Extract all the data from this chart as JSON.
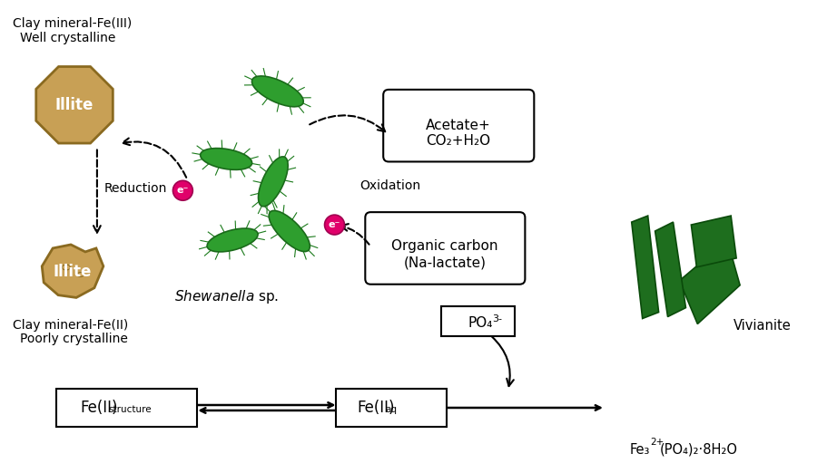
{
  "bg_color": "#ffffff",
  "illite_color": "#c8a055",
  "illite_edge": "#8a6a20",
  "bacteria_color": "#2e9e2e",
  "bacteria_edge": "#1a6a1a",
  "vivianite_color": "#1e6e1e",
  "vivianite_edge": "#0a4a0a",
  "electron_color": "#e0006a",
  "electron_edge": "#a00050",
  "box_color": "#ffffff",
  "box_edge": "#000000",
  "text_top_left_1": "Clay mineral-Fe(III)",
  "text_top_left_2": "Well crystalline",
  "text_illite_top": "Illite",
  "text_bottom_left_1": "Clay mineral-Fe(II)",
  "text_bottom_left_2": "Poorly crystalline",
  "text_illite_bottom": "Illite",
  "text_reduction": "Reduction",
  "text_oxidation": "Oxidation",
  "text_shewanella_italic": "Shewanella",
  "text_shewanella_normal": " sp.",
  "text_acetate_1": "Acetate+",
  "text_acetate_2": "CO₂+H₂O",
  "text_organic_1": "Organic carbon",
  "text_organic_2": "(Na-lactate)",
  "text_fe_structure": "Fe(II)",
  "text_fe_structure_sub": "structure",
  "text_fe_aq": "Fe(II)",
  "text_fe_aq_sub": "aq",
  "text_po4": "PO₄",
  "text_po4_super": "3-",
  "text_vivianite": "Vivianite",
  "text_vivianite_formula": "Fe₃",
  "text_vivianite_formula_super": "2+",
  "text_vivianite_formula2": "(PO₄)₂·8H₂O",
  "text_electron": "e⁻"
}
